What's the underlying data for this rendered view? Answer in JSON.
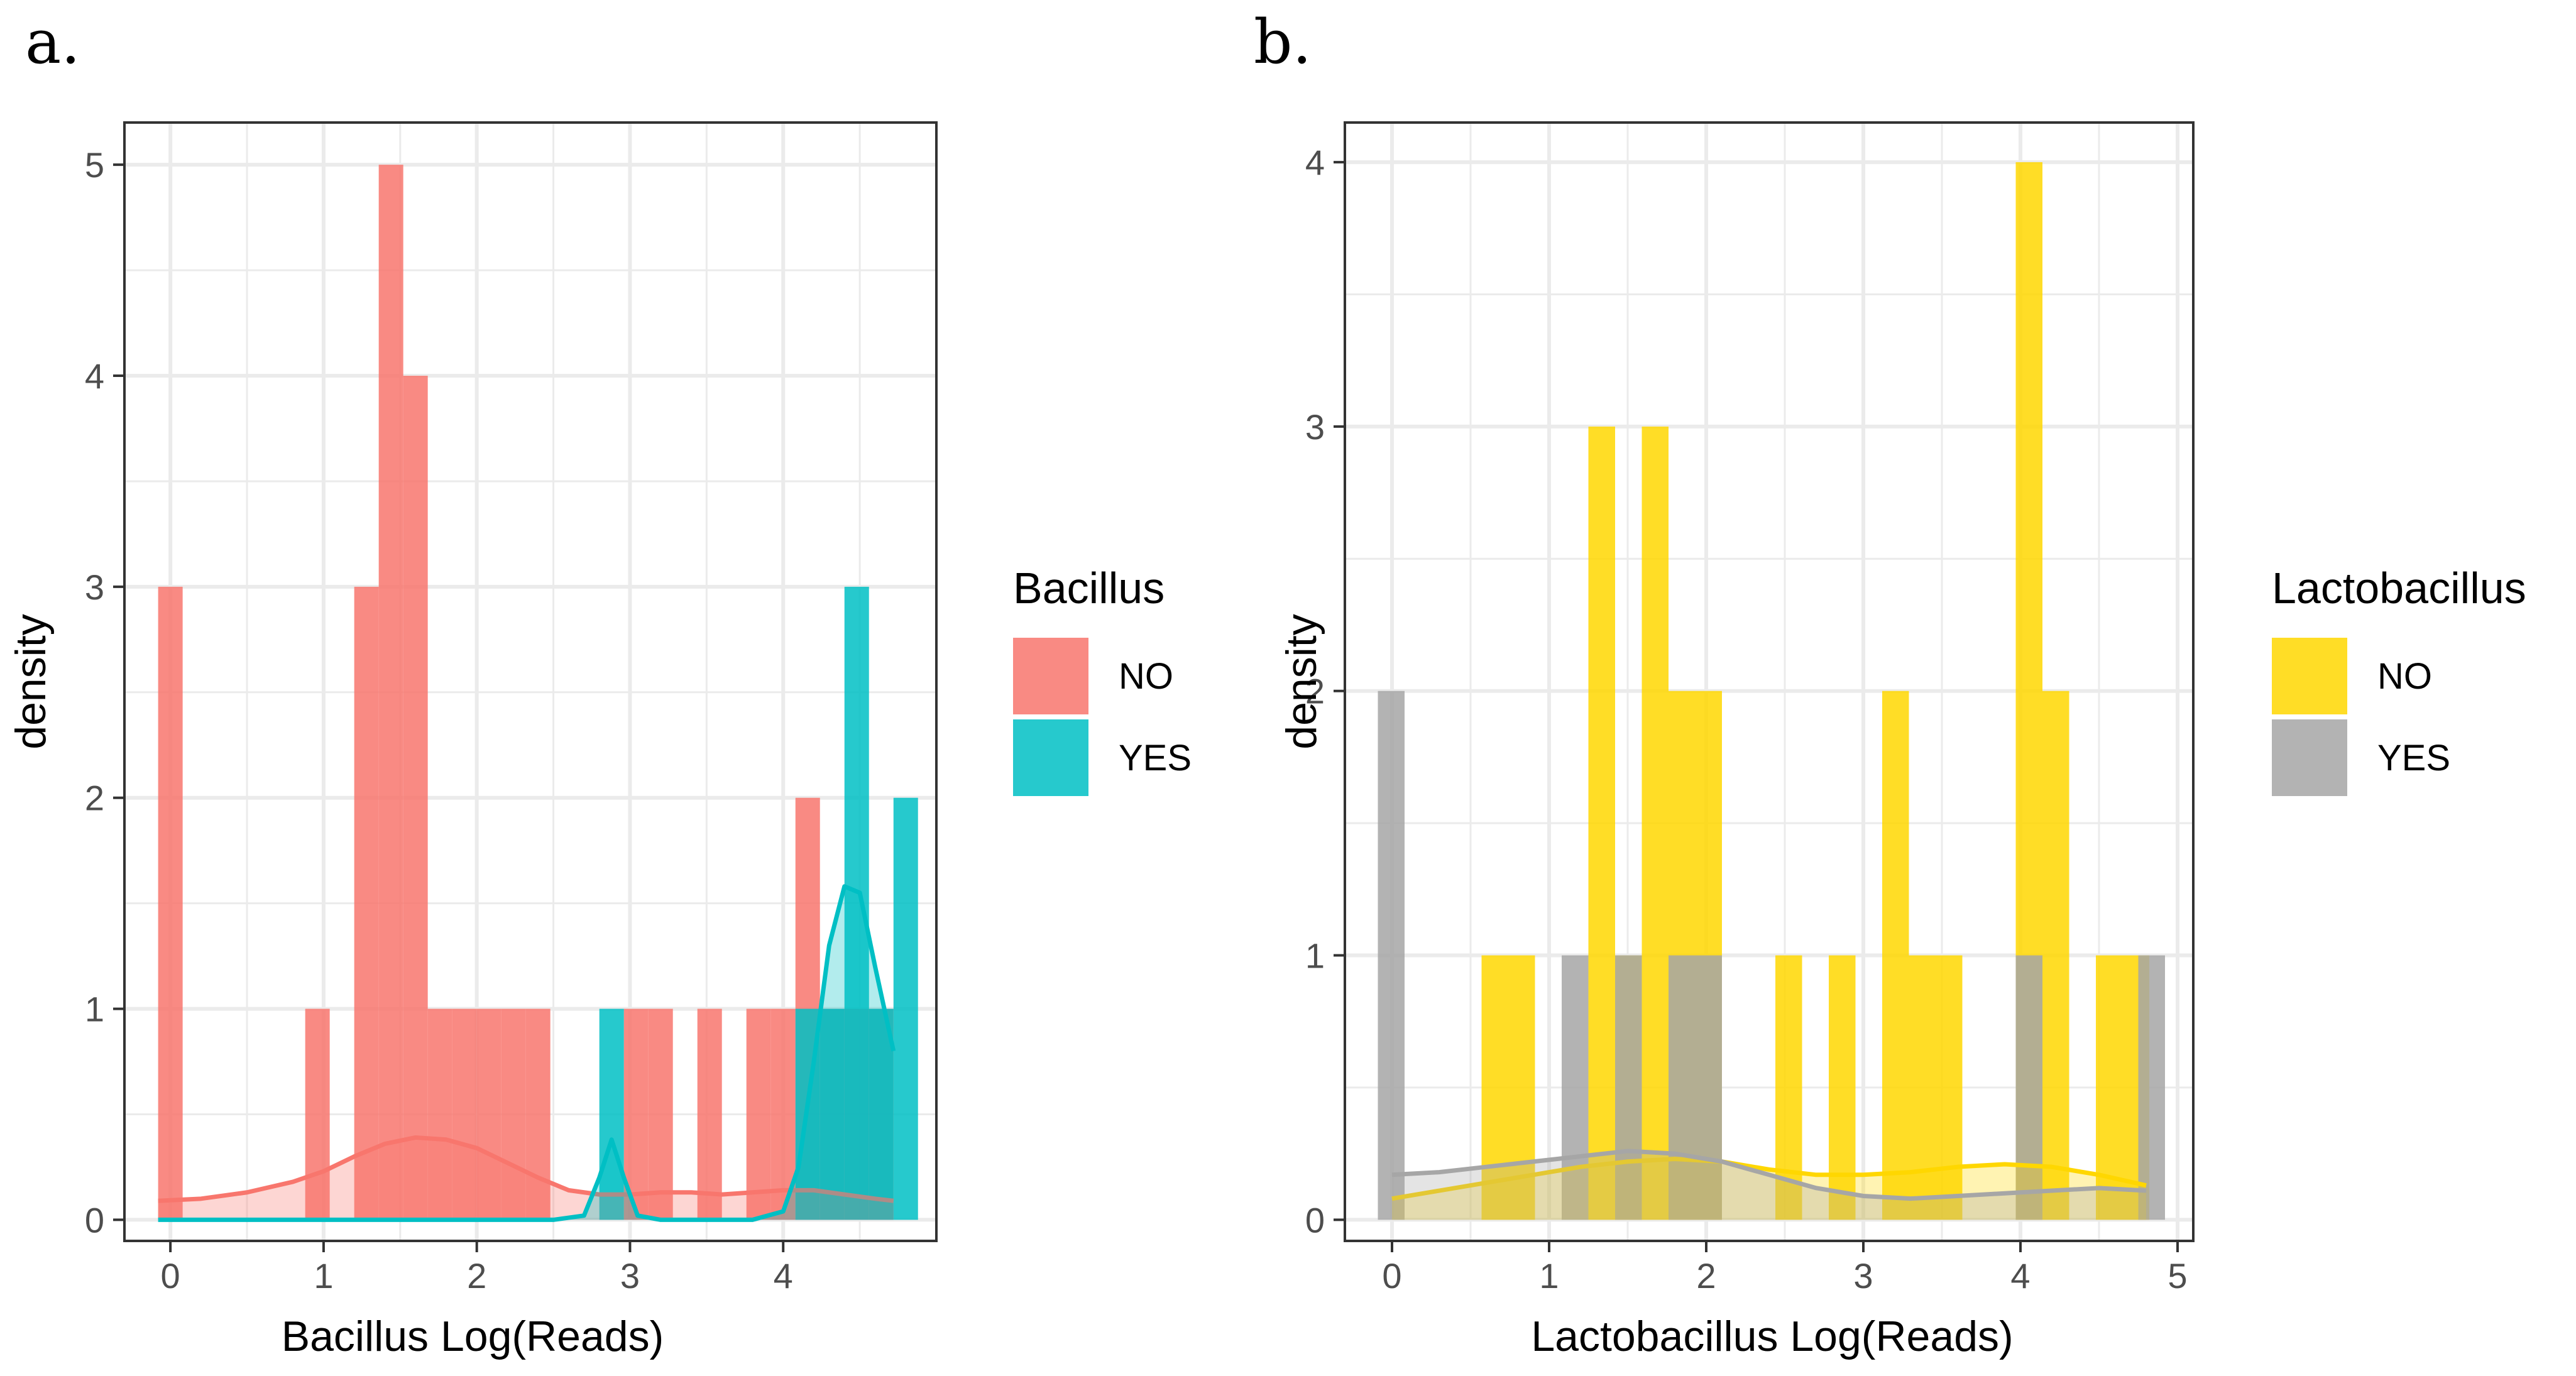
{
  "chart_data": [
    {
      "panel_label": "a.",
      "type": "bar",
      "subtype": "histogram with density overlay",
      "xlabel": "Bacillus Log(Reads)",
      "ylabel": "density",
      "xlim": [
        -0.3,
        5.0
      ],
      "ylim": [
        -0.1,
        5.2
      ],
      "xticks": [
        0,
        1,
        2,
        3,
        4
      ],
      "yticks": [
        0,
        1,
        2,
        3,
        4,
        5
      ],
      "bin_width": 0.16,
      "legend": {
        "title": "Bacillus",
        "position": "right",
        "entries": [
          "NO",
          "YES"
        ]
      },
      "series": [
        {
          "name": "NO",
          "color": "#F8766D",
          "bins": [
            {
              "x0": -0.08,
              "x1": 0.08,
              "value": 3
            },
            {
              "x0": 0.88,
              "x1": 1.04,
              "value": 1
            },
            {
              "x0": 1.2,
              "x1": 1.36,
              "value": 3
            },
            {
              "x0": 1.36,
              "x1": 1.52,
              "value": 5
            },
            {
              "x0": 1.52,
              "x1": 1.68,
              "value": 4
            },
            {
              "x0": 1.68,
              "x1": 1.84,
              "value": 1
            },
            {
              "x0": 1.84,
              "x1": 2.0,
              "value": 1
            },
            {
              "x0": 2.0,
              "x1": 2.16,
              "value": 1
            },
            {
              "x0": 2.16,
              "x1": 2.32,
              "value": 1
            },
            {
              "x0": 2.32,
              "x1": 2.48,
              "value": 1
            },
            {
              "x0": 2.96,
              "x1": 3.12,
              "value": 1
            },
            {
              "x0": 3.12,
              "x1": 3.28,
              "value": 1
            },
            {
              "x0": 3.44,
              "x1": 3.6,
              "value": 1
            },
            {
              "x0": 3.76,
              "x1": 3.92,
              "value": 1
            },
            {
              "x0": 3.92,
              "x1": 4.08,
              "value": 1
            },
            {
              "x0": 4.08,
              "x1": 4.24,
              "value": 2
            },
            {
              "x0": 4.24,
              "x1": 4.4,
              "value": 1
            },
            {
              "x0": 4.4,
              "x1": 4.56,
              "value": 1
            },
            {
              "x0": 4.56,
              "x1": 4.72,
              "value": 1
            }
          ],
          "density": {
            "x": [
              -0.08,
              0.2,
              0.5,
              0.8,
              1.0,
              1.2,
              1.4,
              1.6,
              1.8,
              2.0,
              2.2,
              2.4,
              2.6,
              2.8,
              3.0,
              3.2,
              3.4,
              3.6,
              3.8,
              4.0,
              4.2,
              4.4,
              4.6,
              4.72
            ],
            "y": [
              0.09,
              0.1,
              0.13,
              0.18,
              0.23,
              0.3,
              0.36,
              0.39,
              0.38,
              0.34,
              0.27,
              0.2,
              0.14,
              0.12,
              0.12,
              0.13,
              0.13,
              0.12,
              0.13,
              0.14,
              0.14,
              0.12,
              0.1,
              0.09
            ]
          }
        },
        {
          "name": "YES",
          "color": "#00BFC4",
          "bins": [
            {
              "x0": 2.8,
              "x1": 2.96,
              "value": 1
            },
            {
              "x0": 4.08,
              "x1": 4.24,
              "value": 1
            },
            {
              "x0": 4.24,
              "x1": 4.4,
              "value": 1
            },
            {
              "x0": 4.4,
              "x1": 4.56,
              "value": 3
            },
            {
              "x0": 4.56,
              "x1": 4.72,
              "value": 1
            },
            {
              "x0": 4.72,
              "x1": 4.88,
              "value": 2
            }
          ],
          "density": {
            "x": [
              -0.08,
              2.5,
              2.7,
              2.8,
              2.88,
              2.96,
              3.05,
              3.2,
              3.8,
              4.0,
              4.1,
              4.2,
              4.3,
              4.4,
              4.5,
              4.6,
              4.72
            ],
            "y": [
              0,
              0,
              0.02,
              0.2,
              0.38,
              0.2,
              0.02,
              0,
              0,
              0.04,
              0.25,
              0.75,
              1.3,
              1.58,
              1.55,
              1.2,
              0.8
            ]
          }
        }
      ]
    },
    {
      "panel_label": "b.",
      "type": "bar",
      "subtype": "histogram with density overlay",
      "xlabel": "Lactobacillus Log(Reads)",
      "ylabel": "density",
      "xlim": [
        -0.3,
        5.1
      ],
      "ylim": [
        -0.08,
        4.15
      ],
      "xticks": [
        0,
        1,
        2,
        3,
        4,
        5
      ],
      "yticks": [
        0,
        1,
        2,
        3,
        4
      ],
      "bin_width": 0.17,
      "legend": {
        "title": "Lactobacillus",
        "position": "right",
        "entries": [
          "NO",
          "YES"
        ]
      },
      "series": [
        {
          "name": "NO",
          "color": "#FFD700",
          "bins": [
            {
              "x0": 0.57,
              "x1": 0.74,
              "value": 1
            },
            {
              "x0": 0.74,
              "x1": 0.91,
              "value": 1
            },
            {
              "x0": 1.25,
              "x1": 1.42,
              "value": 3
            },
            {
              "x0": 1.42,
              "x1": 1.59,
              "value": 1
            },
            {
              "x0": 1.59,
              "x1": 1.76,
              "value": 3
            },
            {
              "x0": 1.76,
              "x1": 1.93,
              "value": 2
            },
            {
              "x0": 1.93,
              "x1": 2.1,
              "value": 2
            },
            {
              "x0": 2.44,
              "x1": 2.61,
              "value": 1
            },
            {
              "x0": 2.78,
              "x1": 2.95,
              "value": 1
            },
            {
              "x0": 3.12,
              "x1": 3.29,
              "value": 2
            },
            {
              "x0": 3.29,
              "x1": 3.46,
              "value": 1
            },
            {
              "x0": 3.46,
              "x1": 3.63,
              "value": 1
            },
            {
              "x0": 3.97,
              "x1": 4.14,
              "value": 4
            },
            {
              "x0": 4.14,
              "x1": 4.31,
              "value": 2
            },
            {
              "x0": 4.48,
              "x1": 4.65,
              "value": 1
            },
            {
              "x0": 4.65,
              "x1": 4.82,
              "value": 1
            }
          ],
          "density": {
            "x": [
              0,
              0.3,
              0.6,
              0.9,
              1.2,
              1.5,
              1.8,
              2.1,
              2.4,
              2.7,
              3.0,
              3.3,
              3.6,
              3.9,
              4.2,
              4.5,
              4.8
            ],
            "y": [
              0.08,
              0.11,
              0.14,
              0.17,
              0.2,
              0.22,
              0.23,
              0.22,
              0.19,
              0.17,
              0.17,
              0.18,
              0.2,
              0.21,
              0.2,
              0.17,
              0.13
            ]
          }
        },
        {
          "name": "YES",
          "color": "#A6A6A6",
          "bins": [
            {
              "x0": -0.09,
              "x1": 0.08,
              "value": 2
            },
            {
              "x0": 1.08,
              "x1": 1.25,
              "value": 1
            },
            {
              "x0": 1.42,
              "x1": 1.59,
              "value": 1
            },
            {
              "x0": 1.76,
              "x1": 1.93,
              "value": 1
            },
            {
              "x0": 1.93,
              "x1": 2.1,
              "value": 1
            },
            {
              "x0": 3.97,
              "x1": 4.14,
              "value": 1
            },
            {
              "x0": 4.75,
              "x1": 4.92,
              "value": 1
            }
          ],
          "density": {
            "x": [
              0,
              0.3,
              0.6,
              0.9,
              1.2,
              1.5,
              1.8,
              2.1,
              2.4,
              2.7,
              3.0,
              3.3,
              3.6,
              3.9,
              4.2,
              4.5,
              4.8
            ],
            "y": [
              0.17,
              0.18,
              0.2,
              0.22,
              0.24,
              0.26,
              0.25,
              0.22,
              0.17,
              0.12,
              0.09,
              0.08,
              0.09,
              0.1,
              0.11,
              0.12,
              0.11
            ]
          }
        }
      ]
    }
  ]
}
